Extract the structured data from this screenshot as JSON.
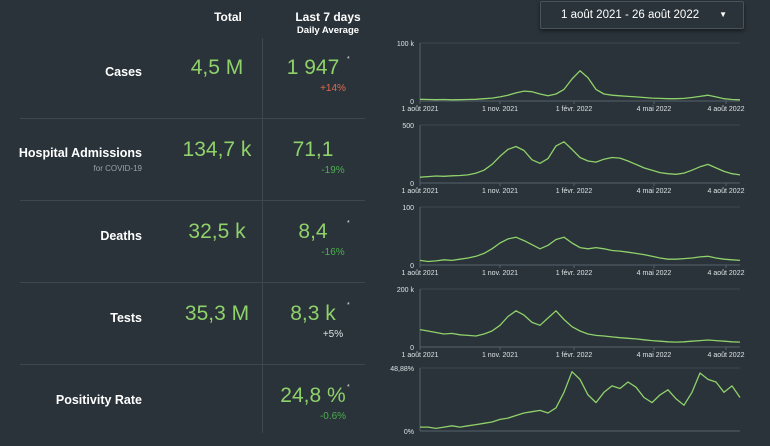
{
  "header": {
    "total_label": "Total",
    "last7_label": "Last 7 days",
    "last7_sublabel": "Daily Average",
    "date_range": "1 août 2021 - 26 août 2022"
  },
  "icons": {
    "date_dropdown": "caret-down-icon"
  },
  "colors": {
    "value": "#8fd16a",
    "up": "#e06a4e",
    "down": "#4caf50",
    "neutral": "#dce3e6",
    "line": "#8fd16a"
  },
  "rows": [
    {
      "label": "Cases",
      "sublabel": "",
      "total": "4,5 M",
      "last7": "1 947",
      "asterisk": "*",
      "change": "+14%",
      "change_dir": "up",
      "chart_data": {
        "type": "line",
        "ymax_label": "100 k",
        "ymin_label": "0",
        "ylim": [
          0,
          100000
        ],
        "x_ticks": [
          "1 août 2021",
          "1 nov. 2021",
          "1 févr. 2022",
          "4 mai 2022",
          "4 août 2022"
        ],
        "series": [
          {
            "values": [
              3000,
              2500,
              2200,
              2500,
              2000,
              2200,
              2600,
              3000,
              4000,
              5000,
              7000,
              10000,
              14000,
              17000,
              16000,
              12000,
              9000,
              12000,
              20000,
              38000,
              52000,
              40000,
              20000,
              12000,
              10000,
              9000,
              8000,
              7000,
              6000,
              5000,
              4500,
              4000,
              4000,
              4500,
              6000,
              8000,
              10000,
              7000,
              4000,
              2500,
              2000
            ]
          }
        ]
      }
    },
    {
      "label": "Hospital Admissions",
      "sublabel": "for COVID-19",
      "total": "134,7 k",
      "last7": "71,1",
      "asterisk": "",
      "change": "-19%",
      "change_dir": "down",
      "chart_data": {
        "type": "line",
        "ymax_label": "500",
        "ymin_label": "0",
        "ylim": [
          0,
          500
        ],
        "x_ticks": [
          "1 août 2021",
          "1 nov. 2021",
          "1 févr. 2022",
          "4 mai 2022",
          "4 août 2022"
        ],
        "series": [
          {
            "values": [
              50,
              55,
              60,
              58,
              62,
              65,
              70,
              85,
              110,
              160,
              230,
              290,
              315,
              280,
              200,
              170,
              210,
              320,
              355,
              290,
              220,
              190,
              180,
              205,
              220,
              215,
              190,
              160,
              130,
              110,
              90,
              80,
              75,
              85,
              110,
              140,
              160,
              130,
              100,
              80,
              70
            ]
          }
        ]
      }
    },
    {
      "label": "Deaths",
      "sublabel": "",
      "total": "32,5 k",
      "last7": "8,4",
      "asterisk": "*",
      "change": "-16%",
      "change_dir": "down",
      "chart_data": {
        "type": "line",
        "ymax_label": "100",
        "ymin_label": "0",
        "ylim": [
          0,
          100
        ],
        "x_ticks": [
          "1 août 2021",
          "1 nov. 2021",
          "1 févr. 2022",
          "4 mai 2022",
          "4 août 2022"
        ],
        "series": [
          {
            "values": [
              8,
              6,
              7,
              9,
              8,
              10,
              12,
              15,
              20,
              28,
              38,
              45,
              48,
              42,
              35,
              28,
              34,
              44,
              48,
              38,
              30,
              28,
              30,
              28,
              25,
              24,
              22,
              20,
              18,
              15,
              12,
              10,
              10,
              11,
              12,
              14,
              15,
              12,
              10,
              9,
              8
            ]
          }
        ]
      }
    },
    {
      "label": "Tests",
      "sublabel": "",
      "total": "35,3 M",
      "last7": "8,3 k",
      "asterisk": "*",
      "change": "+5%",
      "change_dir": "neutral",
      "chart_data": {
        "type": "line",
        "ymax_label": "200 k",
        "ymin_label": "0",
        "ylim": [
          0,
          200000
        ],
        "x_ticks": [
          "1 août 2021",
          "1 nov. 2021",
          "1 févr. 2022",
          "4 mai 2022",
          "4 août 2022"
        ],
        "series": [
          {
            "values": [
              60000,
              55000,
              50000,
              45000,
              47000,
              42000,
              40000,
              38000,
              45000,
              55000,
              75000,
              105000,
              125000,
              110000,
              85000,
              75000,
              100000,
              125000,
              95000,
              70000,
              55000,
              45000,
              40000,
              38000,
              35000,
              32000,
              30000,
              28000,
              25000,
              22000,
              20000,
              18000,
              17000,
              18000,
              20000,
              22000,
              24000,
              22000,
              20000,
              18000,
              17000
            ]
          }
        ]
      }
    },
    {
      "label": "Positivity Rate",
      "sublabel": "",
      "total": "",
      "last7": "24,8 %",
      "asterisk": "*",
      "change": "-0.6%",
      "change_dir": "down",
      "chart_data": {
        "type": "line",
        "ymax_label": "48,88%",
        "ymin_label": "0%",
        "ylim": [
          0,
          48.88
        ],
        "x_ticks": [],
        "series": [
          {
            "values": [
              3,
              3,
              2,
              3,
              4,
              3,
              4,
              5,
              6,
              7,
              9,
              10,
              12,
              14,
              15,
              16,
              14,
              18,
              30,
              46,
              40,
              28,
              22,
              30,
              35,
              33,
              38,
              34,
              26,
              22,
              28,
              32,
              25,
              20,
              30,
              45,
              40,
              38,
              30,
              35,
              26
            ]
          }
        ]
      }
    }
  ]
}
